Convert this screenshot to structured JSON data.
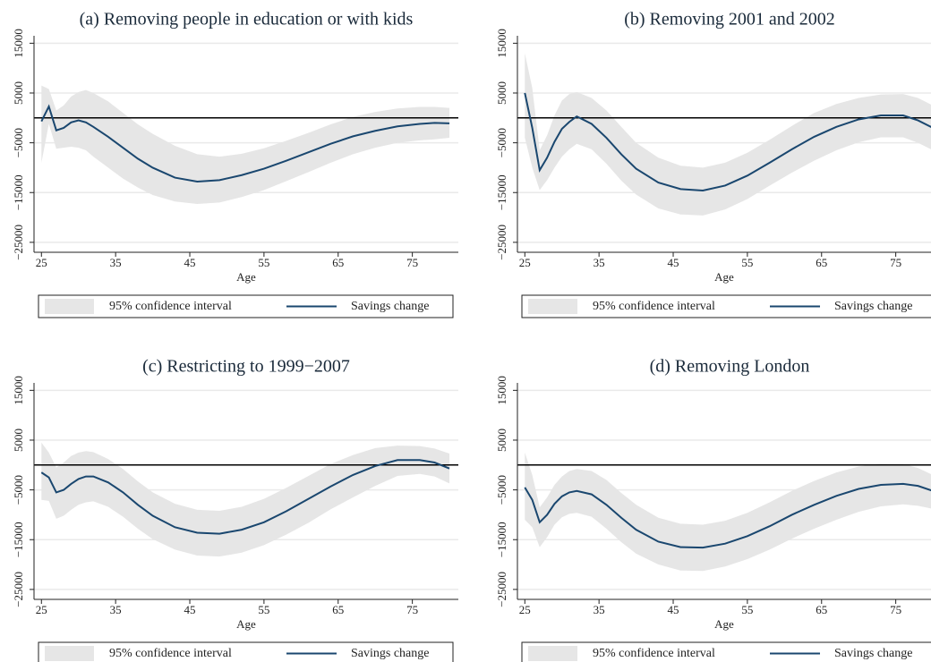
{
  "chart_data": [
    {
      "type": "line",
      "title": "(a) Removing people in education or with kids",
      "x_label": "Age",
      "x": [
        25,
        26,
        27,
        28,
        29,
        30,
        31,
        32,
        34,
        36,
        38,
        40,
        43,
        46,
        49,
        52,
        55,
        58,
        61,
        64,
        67,
        70,
        73,
        76,
        78,
        80
      ],
      "series": [
        {
          "name": "95% confidence interval",
          "type": "band",
          "color": "#e6e6e6",
          "upper": [
            6500,
            5800,
            1500,
            2500,
            4300,
            5200,
            5600,
            5000,
            3300,
            1000,
            -1300,
            -3200,
            -5600,
            -7300,
            -7800,
            -7200,
            -6100,
            -4600,
            -3000,
            -1300,
            200,
            1200,
            1900,
            2200,
            2200,
            2000
          ],
          "lower": [
            -9000,
            -1200,
            -6200,
            -6000,
            -5800,
            -6000,
            -6500,
            -7800,
            -10000,
            -12200,
            -14000,
            -15500,
            -16800,
            -17300,
            -17000,
            -15900,
            -14500,
            -12700,
            -10900,
            -9000,
            -7300,
            -6000,
            -5000,
            -4500,
            -4300,
            -4000
          ]
        },
        {
          "name": "Savings change",
          "color": "#1a476f",
          "values": [
            -700,
            2300,
            -2500,
            -2000,
            -900,
            -500,
            -900,
            -1800,
            -3800,
            -6000,
            -8200,
            -10000,
            -12000,
            -12800,
            -12500,
            -11500,
            -10200,
            -8600,
            -6900,
            -5200,
            -3700,
            -2600,
            -1700,
            -1200,
            -1000,
            -1100
          ]
        }
      ],
      "xlim": [
        24,
        81.2
      ],
      "xticks": [
        25,
        35,
        45,
        55,
        65,
        75
      ],
      "ylim": [
        -27000,
        16500
      ],
      "yticks": [
        {
          "value": -25000,
          "label": "−25000"
        },
        {
          "value": -15000,
          "label": "−15000"
        },
        {
          "value": -5000,
          "label": "−5000"
        },
        5000,
        15000
      ],
      "hline": 0,
      "grid": true
    },
    {
      "type": "line",
      "title": "(b) Removing 2001 and 2002",
      "x_label": "Age",
      "x": [
        25,
        26,
        27,
        28,
        29,
        30,
        31,
        32,
        34,
        36,
        38,
        40,
        43,
        46,
        49,
        52,
        55,
        58,
        61,
        64,
        67,
        70,
        73,
        76,
        78,
        80
      ],
      "series": [
        {
          "name": "95% confidence interval",
          "type": "band",
          "color": "#e6e6e6",
          "upper": [
            13000,
            6000,
            -6500,
            -3500,
            500,
            3500,
            4800,
            5200,
            4000,
            1500,
            -1800,
            -5000,
            -8000,
            -9600,
            -10000,
            -9000,
            -7000,
            -4400,
            -1600,
            1000,
            2800,
            4000,
            4700,
            4800,
            4000,
            2500
          ],
          "lower": [
            -4000,
            -10000,
            -14500,
            -12500,
            -10000,
            -7800,
            -6300,
            -5200,
            -6300,
            -9200,
            -12600,
            -15400,
            -18200,
            -19400,
            -19600,
            -18400,
            -16300,
            -13600,
            -11000,
            -8600,
            -6500,
            -4900,
            -3900,
            -3900,
            -5000,
            -6500
          ]
        },
        {
          "name": "Savings change",
          "color": "#1a476f",
          "values": [
            5000,
            -2000,
            -10500,
            -8000,
            -4800,
            -2200,
            -800,
            300,
            -1200,
            -4000,
            -7300,
            -10200,
            -13000,
            -14300,
            -14600,
            -13600,
            -11600,
            -9000,
            -6300,
            -3800,
            -1800,
            -300,
            500,
            500,
            -500,
            -2000
          ]
        }
      ],
      "xlim": [
        24,
        81.2
      ],
      "xticks": [
        25,
        35,
        45,
        55,
        65,
        75
      ],
      "ylim": [
        -27000,
        16500
      ],
      "yticks": [
        {
          "value": -25000,
          "label": "−25000"
        },
        {
          "value": -15000,
          "label": "−15000"
        },
        {
          "value": -5000,
          "label": "−5000"
        },
        5000,
        15000
      ],
      "hline": 0,
      "grid": true
    },
    {
      "type": "line",
      "title": "(c) Restricting to 1999−2007",
      "x_label": "Age",
      "x": [
        25,
        26,
        27,
        28,
        29,
        30,
        31,
        32,
        34,
        36,
        38,
        40,
        43,
        46,
        49,
        52,
        55,
        58,
        61,
        64,
        67,
        70,
        73,
        76,
        78,
        80
      ],
      "series": [
        {
          "name": "95% confidence interval",
          "type": "band",
          "color": "#e6e6e6",
          "upper": [
            4500,
            2500,
            -500,
            500,
            1800,
            2500,
            2800,
            2600,
            1200,
            -800,
            -3300,
            -5500,
            -7800,
            -9000,
            -9200,
            -8400,
            -6800,
            -4600,
            -2200,
            200,
            2000,
            3400,
            3900,
            3800,
            3300,
            2300
          ],
          "lower": [
            -7000,
            -7200,
            -10800,
            -10200,
            -9000,
            -8000,
            -7500,
            -7300,
            -8400,
            -10400,
            -12800,
            -14900,
            -17000,
            -18200,
            -18400,
            -17600,
            -16100,
            -14000,
            -11600,
            -8900,
            -6500,
            -4200,
            -2200,
            -1800,
            -2300,
            -3700
          ]
        },
        {
          "name": "Savings change",
          "color": "#1a476f",
          "values": [
            -1500,
            -2500,
            -5500,
            -5000,
            -3800,
            -2800,
            -2300,
            -2300,
            -3500,
            -5500,
            -8000,
            -10200,
            -12500,
            -13600,
            -13800,
            -13000,
            -11500,
            -9300,
            -6800,
            -4300,
            -2000,
            -200,
            1000,
            1000,
            500,
            -700
          ]
        }
      ],
      "xlim": [
        24,
        81.2
      ],
      "xticks": [
        25,
        35,
        45,
        55,
        65,
        75
      ],
      "ylim": [
        -27000,
        16500
      ],
      "yticks": [
        {
          "value": -25000,
          "label": "−25000"
        },
        {
          "value": -15000,
          "label": "−15000"
        },
        {
          "value": -5000,
          "label": "−5000"
        },
        5000,
        15000
      ],
      "hline": 0,
      "grid": true
    },
    {
      "type": "line",
      "title": "(d) Removing London",
      "x_label": "Age",
      "x": [
        25,
        26,
        27,
        28,
        29,
        30,
        31,
        32,
        34,
        36,
        38,
        40,
        43,
        46,
        49,
        52,
        55,
        58,
        61,
        64,
        67,
        70,
        73,
        76,
        78,
        80
      ],
      "series": [
        {
          "name": "95% confidence interval",
          "type": "band",
          "color": "#e6e6e6",
          "upper": [
            2500,
            -2000,
            -8500,
            -6500,
            -4000,
            -2300,
            -1200,
            -800,
            -1200,
            -3000,
            -5600,
            -8000,
            -10600,
            -11800,
            -12000,
            -11200,
            -9600,
            -7500,
            -5200,
            -3200,
            -1500,
            -300,
            300,
            200,
            -600,
            -2000
          ],
          "lower": [
            -11000,
            -12500,
            -16500,
            -14500,
            -12000,
            -10500,
            -9800,
            -9600,
            -10400,
            -12800,
            -15500,
            -17800,
            -20000,
            -21200,
            -21300,
            -20400,
            -18900,
            -17000,
            -14800,
            -12800,
            -11000,
            -9400,
            -8300,
            -7900,
            -8200,
            -8800
          ]
        },
        {
          "name": "Savings change",
          "color": "#1a476f",
          "values": [
            -4500,
            -7000,
            -11500,
            -10000,
            -7800,
            -6300,
            -5500,
            -5200,
            -5900,
            -8000,
            -10600,
            -13000,
            -15400,
            -16500,
            -16600,
            -15800,
            -14300,
            -12300,
            -10000,
            -8000,
            -6200,
            -4800,
            -4000,
            -3800,
            -4200,
            -5200
          ]
        }
      ],
      "xlim": [
        24,
        81.2
      ],
      "xticks": [
        25,
        35,
        45,
        55,
        65,
        75
      ],
      "ylim": [
        -27000,
        16500
      ],
      "yticks": [
        {
          "value": -25000,
          "label": "−25000"
        },
        {
          "value": -15000,
          "label": "−15000"
        },
        {
          "value": -5000,
          "label": "−5000"
        },
        5000,
        15000
      ],
      "hline": 0,
      "grid": true
    }
  ]
}
